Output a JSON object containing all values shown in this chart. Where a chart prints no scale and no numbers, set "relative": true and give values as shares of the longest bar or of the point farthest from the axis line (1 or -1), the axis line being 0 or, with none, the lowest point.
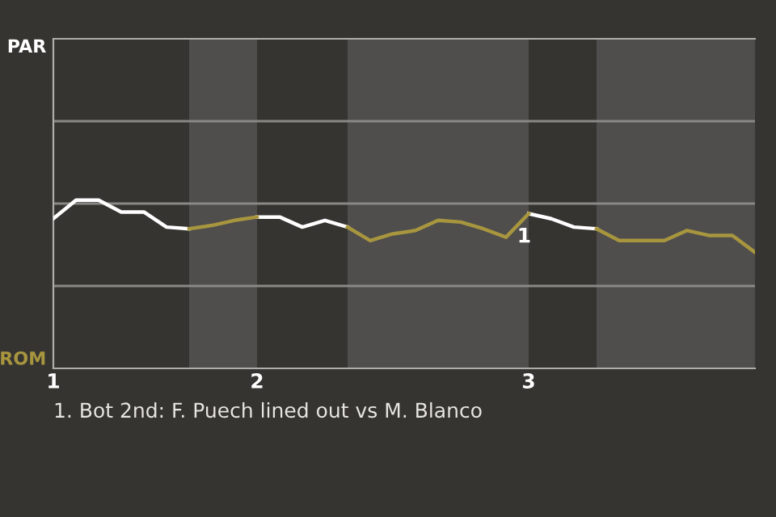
{
  "chart_data": {
    "type": "line",
    "relative": true,
    "categories": [
      "1",
      null,
      null,
      null,
      null,
      null,
      null,
      null,
      null,
      "2",
      null,
      null,
      null,
      null,
      null,
      null,
      null,
      null,
      null,
      null,
      null,
      "3",
      null,
      null,
      null,
      null,
      null,
      null,
      null,
      null,
      null,
      null
    ],
    "series": [
      {
        "color": "#ffffff",
        "values": [
          0.89,
          1.0,
          1.0,
          0.93,
          0.93,
          0.84,
          0.83,
          null,
          null,
          0.9,
          0.9,
          0.84,
          0.88,
          0.84,
          null,
          null,
          null,
          null,
          null,
          null,
          null,
          0.92,
          0.89,
          0.84,
          0.83,
          null,
          null,
          null,
          null,
          null,
          null,
          null
        ]
      },
      {
        "color": "#a8963f",
        "values": [
          null,
          null,
          null,
          null,
          null,
          null,
          0.83,
          0.85,
          0.88,
          0.9,
          null,
          null,
          null,
          0.84,
          0.76,
          0.8,
          0.82,
          0.88,
          0.87,
          0.83,
          0.78,
          0.92,
          null,
          null,
          0.83,
          0.76,
          0.76,
          0.76,
          0.82,
          0.79,
          0.79,
          0.69
        ]
      }
    ],
    "ref_lines": [
      {
        "axis": "y",
        "value": 0.49,
        "color": "#8a8885"
      },
      {
        "axis": "y",
        "value": 0.98,
        "color": "#8a8885"
      },
      {
        "axis": "y",
        "value": 1.47,
        "color": "#8a8885"
      }
    ],
    "annotations": [
      "PAR",
      "ROM",
      {
        "text": "1",
        "x": "3",
        "y": 0.92
      },
      "1. Bot 2nd: F. Puech lined out vs M. Blanco"
    ]
  }
}
